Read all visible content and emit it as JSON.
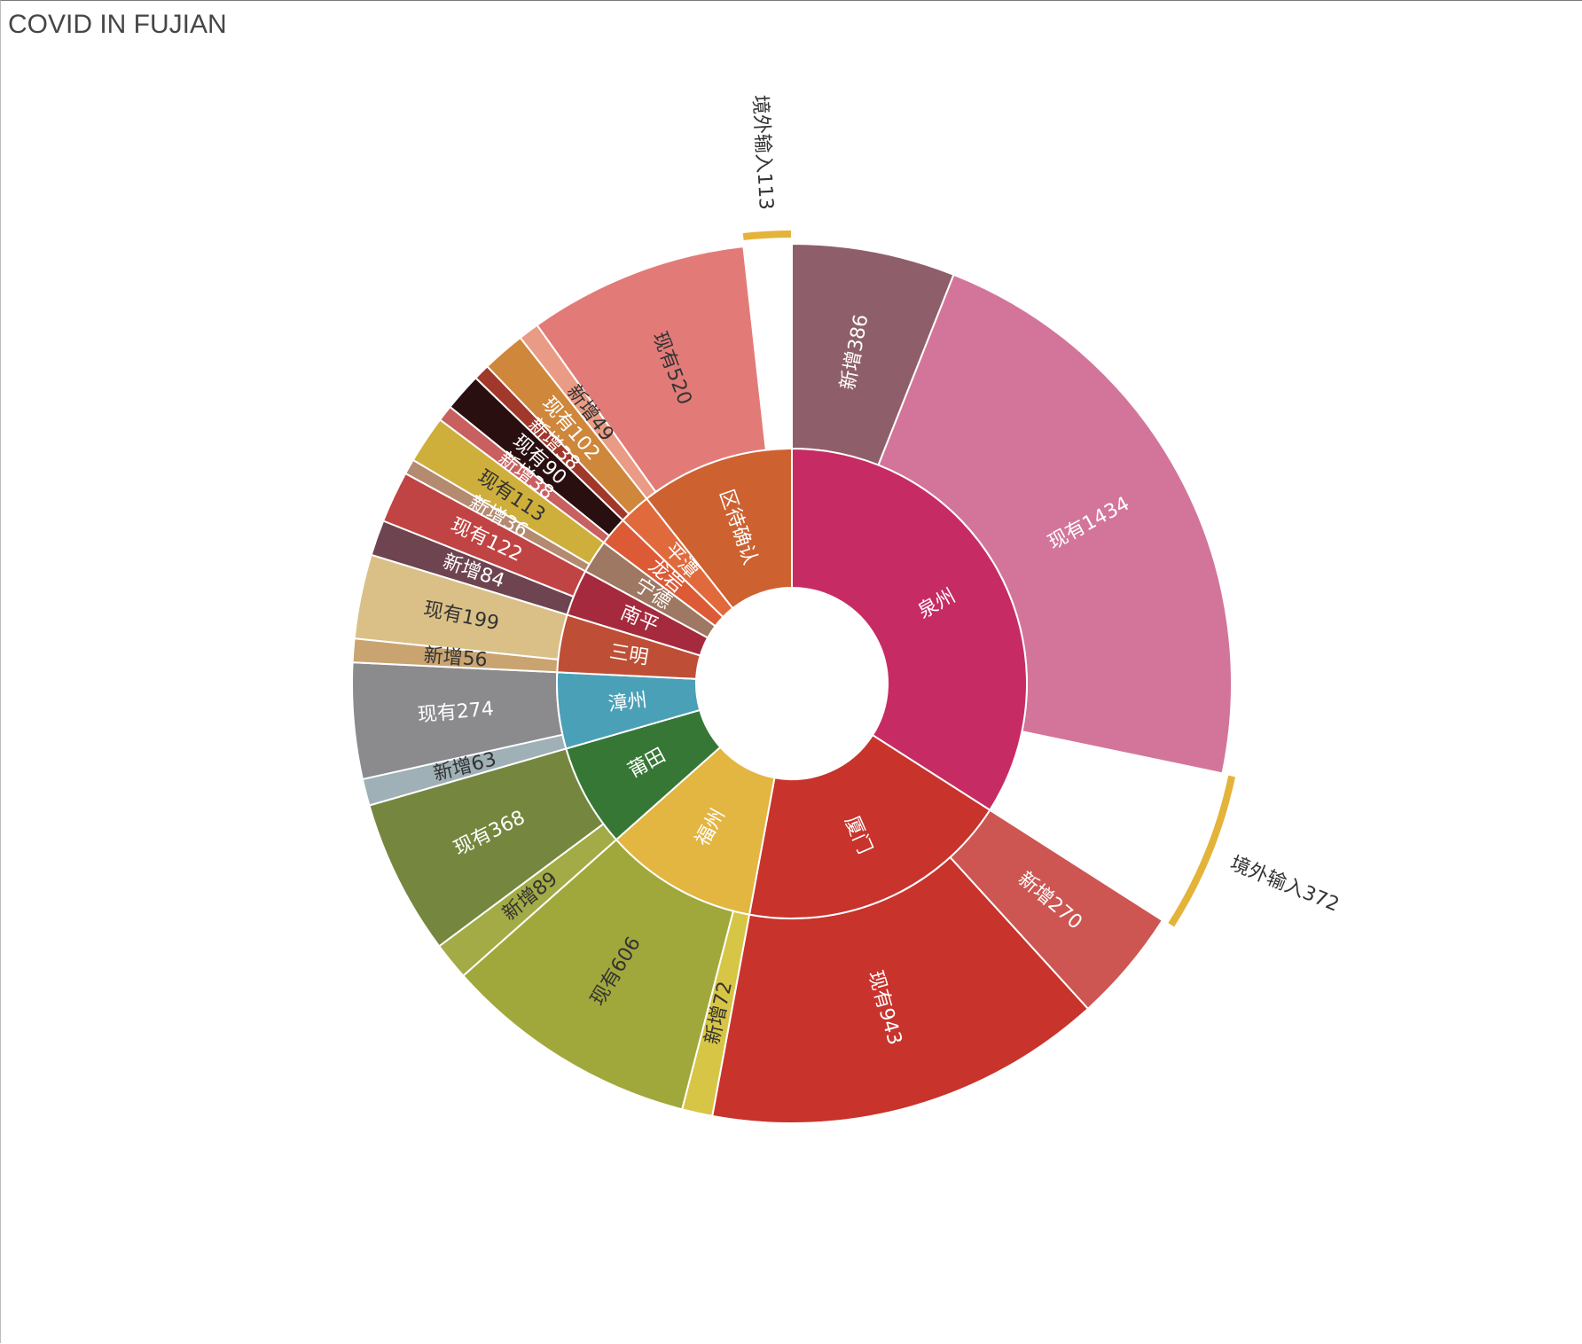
{
  "chart_data": {
    "type": "sunburst",
    "title": "COVID IN FUJIAN",
    "children": [
      {
        "name": "泉州",
        "color": "#c62c63",
        "children": [
          {
            "name": "新增386",
            "value": 386,
            "color": "#8e5f6a"
          },
          {
            "name": "现有1434",
            "value": 1434,
            "color": "#d3759a"
          },
          {
            "name": "境外输入372",
            "value": 372,
            "color": "#e4b339",
            "thin": true
          }
        ]
      },
      {
        "name": "厦门",
        "color": "#c8332c",
        "children": [
          {
            "name": "新增270",
            "value": 270,
            "color": "#cd5652"
          },
          {
            "name": "现有943",
            "value": 943,
            "color": "#c8332c"
          }
        ]
      },
      {
        "name": "福州",
        "color": "#e3b541",
        "children": [
          {
            "name": "新增72",
            "value": 72,
            "color": "#d7c546"
          },
          {
            "name": "现有606",
            "value": 606,
            "color": "#a1a83b"
          }
        ]
      },
      {
        "name": "莆田",
        "color": "#367736",
        "children": [
          {
            "name": "新增89",
            "value": 89,
            "color": "#a2ab45"
          },
          {
            "name": "现有368",
            "value": 368,
            "color": "#75873e"
          }
        ]
      },
      {
        "name": "漳州",
        "color": "#4aa0b7",
        "children": [
          {
            "name": "新增63",
            "value": 63,
            "color": "#9fb0b7"
          },
          {
            "name": "现有274",
            "value": 274,
            "color": "#8b8b8e"
          }
        ]
      },
      {
        "name": "三明",
        "color": "#be4f36",
        "children": [
          {
            "name": "新增56",
            "value": 56,
            "color": "#c9a470"
          },
          {
            "name": "现有199",
            "value": 199,
            "color": "#dac087"
          }
        ]
      },
      {
        "name": "南平",
        "color": "#a52a3e",
        "children": [
          {
            "name": "新增84",
            "value": 84,
            "color": "#6e4450"
          },
          {
            "name": "现有122",
            "value": 122,
            "color": "#c04443"
          }
        ]
      },
      {
        "name": "宁德",
        "color": "#9e7862",
        "children": [
          {
            "name": "新增36",
            "value": 36,
            "color": "#b48a70"
          },
          {
            "name": "现有113",
            "value": 113,
            "color": "#ceaf3b"
          }
        ]
      },
      {
        "name": "龙岩",
        "color": "#dc5a36",
        "children": [
          {
            "name": "新增38",
            "value": 38,
            "color": "#c86060"
          },
          {
            "name": "现有90",
            "value": 90,
            "color": "#2a0f10"
          }
        ]
      },
      {
        "name": "平潭",
        "color": "#e06a3c",
        "children": [
          {
            "name": "新增38",
            "value": 38,
            "color": "#a0382b"
          },
          {
            "name": "现有102",
            "value": 102,
            "color": "#cf873b"
          }
        ]
      },
      {
        "name": "区待确认",
        "color": "#cd6130",
        "children": [
          {
            "name": "新增49",
            "value": 49,
            "color": "#ea9b86"
          },
          {
            "name": "现有520",
            "value": 520,
            "color": "#e27b78"
          },
          {
            "name": "境外输入113",
            "value": 113,
            "color": "#e4b339",
            "thin": true
          }
        ]
      }
    ]
  }
}
